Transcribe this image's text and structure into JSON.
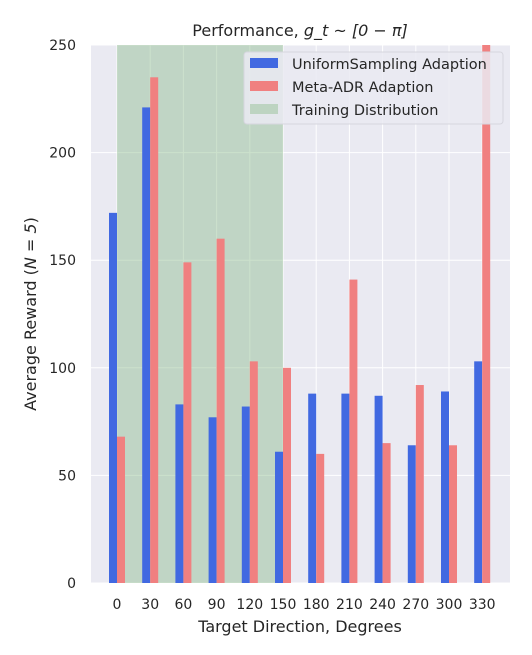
{
  "chart_data": {
    "type": "bar",
    "title_prefix": "Performance, ",
    "title_math": "g_t ~ [0 − π]",
    "xlabel": "Target Direction, Degrees",
    "ylabel_prefix": "Average Reward (",
    "ylabel_math": "N = 5",
    "ylabel_suffix": ")",
    "categories": [
      "0",
      "30",
      "60",
      "90",
      "120",
      "150",
      "180",
      "210",
      "240",
      "270",
      "300",
      "330"
    ],
    "ylim": [
      0,
      250
    ],
    "yticks": [
      0,
      50,
      100,
      150,
      200,
      250
    ],
    "grid": true,
    "legend_position": "top-right",
    "series": [
      {
        "name": "UniformSampling Adaption",
        "color": "#4169e1",
        "values": [
          172,
          221,
          83,
          77,
          82,
          61,
          88,
          88,
          87,
          64,
          89,
          103
        ]
      },
      {
        "name": "Meta-ADR Adaption",
        "color": "#f08080",
        "values": [
          68,
          235,
          149,
          160,
          103,
          100,
          60,
          141,
          65,
          92,
          64,
          250
        ]
      }
    ],
    "training_distribution": {
      "name": "Training Distribution",
      "color": "#8fbc8f",
      "x_from": 0,
      "x_to": 150
    }
  }
}
